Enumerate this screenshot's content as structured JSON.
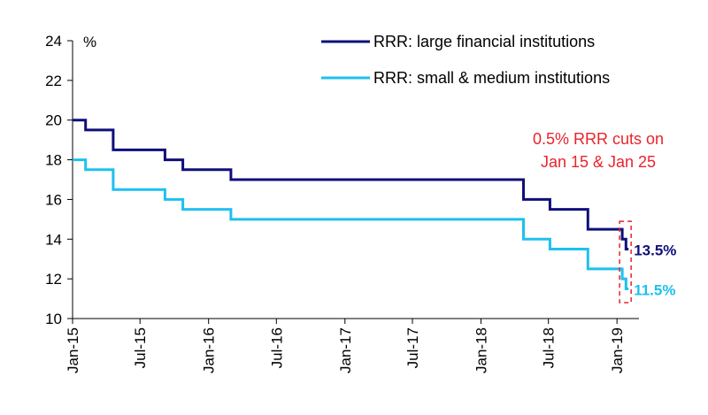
{
  "chart_data": {
    "type": "line",
    "ylabel": "%",
    "ylim": [
      10,
      24
    ],
    "yticks": [
      "10",
      "12",
      "14",
      "16",
      "18",
      "20",
      "22",
      "24"
    ],
    "xlim": [
      "2015-01-01",
      "2019-03-01"
    ],
    "xticks": [
      {
        "label": "Jan-15",
        "date": "2015-01-01"
      },
      {
        "label": "Jul-15",
        "date": "2015-07-01"
      },
      {
        "label": "Jan-16",
        "date": "2016-01-01"
      },
      {
        "label": "Jul-16",
        "date": "2016-07-01"
      },
      {
        "label": "Jan-17",
        "date": "2017-01-01"
      },
      {
        "label": "Jul-17",
        "date": "2017-07-01"
      },
      {
        "label": "Jan-18",
        "date": "2018-01-01"
      },
      {
        "label": "Jul-18",
        "date": "2018-07-01"
      },
      {
        "label": "Jan-19",
        "date": "2019-01-01"
      }
    ],
    "series": [
      {
        "name": "RRR: large financial institutions",
        "color": "#0f0f7a",
        "end_label": "13.5%",
        "points": [
          [
            "2015-01-01",
            20.0
          ],
          [
            "2015-02-05",
            19.5
          ],
          [
            "2015-04-20",
            18.5
          ],
          [
            "2015-09-06",
            18.0
          ],
          [
            "2015-10-24",
            17.5
          ],
          [
            "2016-03-01",
            17.0
          ],
          [
            "2018-04-25",
            16.0
          ],
          [
            "2018-07-05",
            15.5
          ],
          [
            "2018-10-15",
            14.5
          ],
          [
            "2019-01-15",
            14.0
          ],
          [
            "2019-01-25",
            13.5
          ],
          [
            "2019-02-01",
            13.5
          ]
        ]
      },
      {
        "name": "RRR: small & medium institutions",
        "color": "#1ec0ef",
        "end_label": "11.5%",
        "points": [
          [
            "2015-01-01",
            18.0
          ],
          [
            "2015-02-05",
            17.5
          ],
          [
            "2015-04-20",
            16.5
          ],
          [
            "2015-09-06",
            16.0
          ],
          [
            "2015-10-24",
            15.5
          ],
          [
            "2016-03-01",
            15.0
          ],
          [
            "2018-04-25",
            14.0
          ],
          [
            "2018-07-05",
            13.5
          ],
          [
            "2018-10-15",
            12.5
          ],
          [
            "2019-01-15",
            12.0
          ],
          [
            "2019-01-25",
            11.5
          ],
          [
            "2019-02-01",
            11.5
          ]
        ]
      }
    ],
    "annotation": {
      "lines": [
        "0.5% RRR cuts on",
        "Jan 15 & Jan 25"
      ],
      "color": "#e8242b"
    },
    "legend_position": "top-right",
    "grid": false
  }
}
